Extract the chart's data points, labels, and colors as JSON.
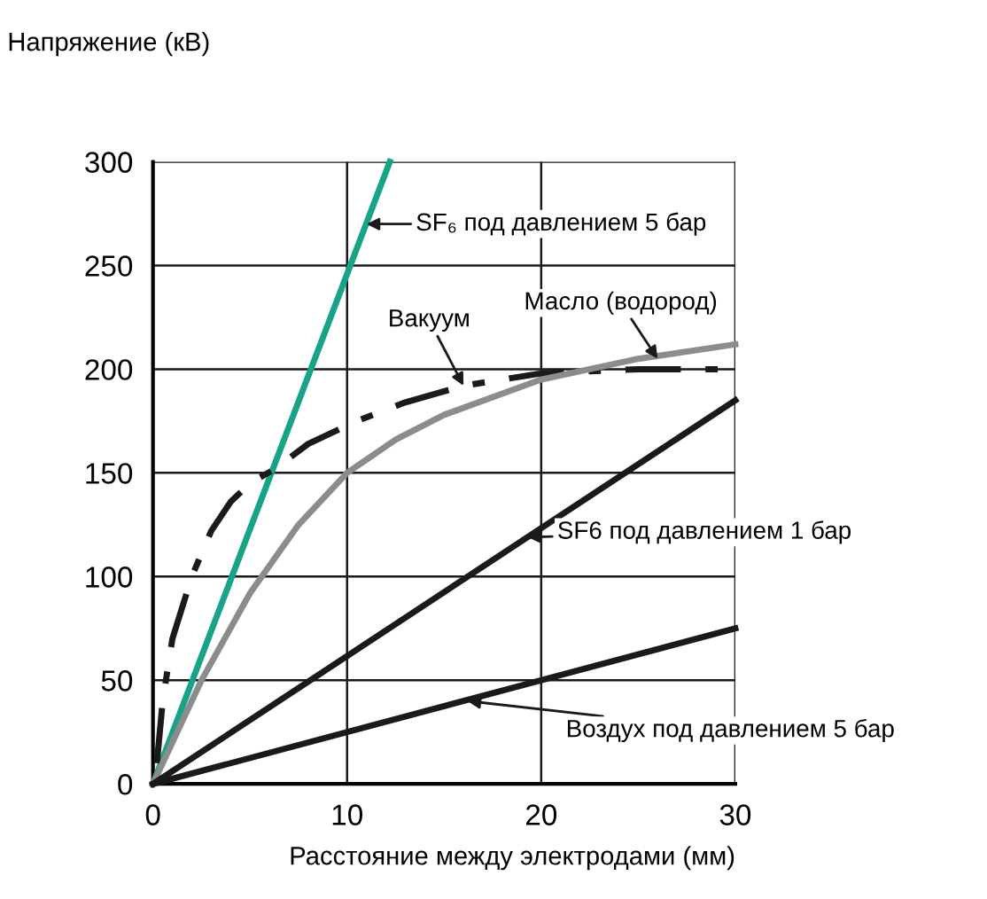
{
  "chart_data": {
    "type": "line",
    "ylabel": "Напряжение (кВ)",
    "xlabel": "Расстояние между электродами (мм)",
    "xlim": [
      0,
      30
    ],
    "ylim": [
      0,
      300
    ],
    "xticks": [
      0,
      10,
      20,
      30
    ],
    "yticks": [
      0,
      50,
      100,
      150,
      200,
      250,
      300
    ],
    "grid": true,
    "legend": false,
    "series": [
      {
        "color": "#16a387",
        "x": [
          0,
          12.2
        ],
        "values": [
          0,
          300
        ]
      },
      {
        "color": "#1a1a1a",
        "line_style": "dashed",
        "x": [
          0.2,
          0.5,
          1,
          2,
          3,
          4,
          5,
          6.3,
          8,
          10.5,
          13,
          16,
          20,
          25,
          30
        ],
        "values": [
          10,
          40,
          70,
          100,
          122,
          136,
          145,
          152,
          164,
          175,
          184,
          192,
          198,
          200,
          200
        ]
      },
      {
        "color": "#8c8c8c",
        "x": [
          0,
          2.5,
          5,
          7.5,
          10,
          12.5,
          15,
          20,
          25,
          30
        ],
        "values": [
          0,
          50,
          92,
          125,
          150,
          166,
          178,
          195,
          205,
          212
        ]
      },
      {
        "color": "#1a1a1a",
        "x": [
          0,
          30
        ],
        "values": [
          0,
          185
        ]
      },
      {
        "color": "#1a1a1a",
        "x": [
          0,
          30
        ],
        "values": [
          0,
          75
        ]
      }
    ],
    "annotations": [
      {
        "text": "SF₆ под давлением 5 бар",
        "x": 11,
        "y": 270
      },
      {
        "text": "Вакуум",
        "x": 16,
        "y": 192
      },
      {
        "text": "Масло (водород)",
        "x": 26,
        "y": 205
      },
      {
        "text": "SF6 под давлением 1 бар",
        "x": 19.3,
        "y": 119
      },
      {
        "text": "Воздух под давлением 5 бар",
        "x": 16.2,
        "y": 40
      }
    ]
  }
}
